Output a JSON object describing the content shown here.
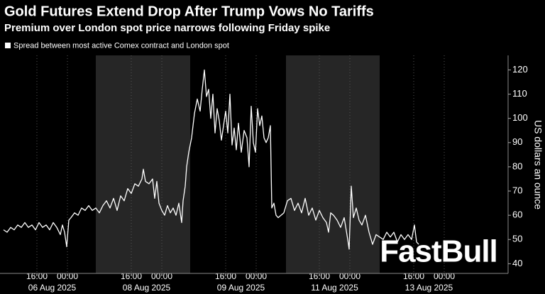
{
  "chart_data": {
    "type": "line",
    "title": "Gold Futures Extend Drop After Trump Vows No Tariffs",
    "subtitle": "Premium over London spot price narrows following Friday spike",
    "y_label": "US dollars an ounce",
    "watermark": "FastBull",
    "x": [
      5,
      10,
      15,
      20,
      25,
      30,
      35,
      40,
      45,
      50,
      55,
      60,
      65,
      70,
      75,
      80,
      85,
      88,
      91,
      94,
      97,
      100,
      105,
      110,
      115,
      120,
      125,
      130,
      135,
      140,
      145,
      150,
      155,
      160,
      165,
      170,
      175,
      180,
      185,
      190,
      195,
      200,
      202,
      205,
      210,
      215,
      218,
      221,
      224,
      228,
      232,
      236,
      240,
      244,
      248,
      252,
      256,
      258,
      261,
      263,
      266,
      270,
      274,
      278,
      282,
      285,
      288,
      291,
      294,
      297,
      300,
      303,
      306,
      309,
      312,
      315,
      318,
      321,
      324,
      327,
      330,
      333,
      336,
      340,
      344,
      348,
      351,
      354,
      357,
      360,
      363,
      366,
      369,
      372,
      375,
      378,
      381,
      383,
      386,
      389,
      392,
      396,
      400,
      405,
      410,
      415,
      420,
      425,
      430,
      435,
      440,
      445,
      450,
      455,
      460,
      463,
      466,
      470,
      475,
      480,
      485,
      490,
      492,
      495,
      498,
      502,
      506,
      510,
      515,
      520,
      525,
      530,
      535,
      540,
      545,
      550,
      555,
      560,
      565,
      570,
      575,
      580,
      584,
      587,
      590
    ],
    "series": [
      {
        "name": "Spread between most active Comex contract and London spot",
        "color": "#ffffff",
        "values": [
          54,
          53,
          55,
          54,
          56,
          55,
          57,
          55,
          56,
          54,
          57,
          55,
          56,
          54,
          57,
          55,
          52,
          56,
          53,
          47,
          58,
          59,
          61,
          60,
          63,
          62,
          64,
          62,
          63,
          61,
          64,
          66,
          63,
          67,
          62,
          68,
          66,
          71,
          69,
          73,
          72,
          75,
          79,
          74,
          73,
          75,
          67,
          74,
          65,
          62,
          60,
          64,
          61,
          63,
          60,
          65,
          57,
          66,
          72,
          80,
          86,
          92,
          102,
          108,
          103,
          112,
          120,
          109,
          112,
          100,
          110,
          94,
          104,
          99,
          91,
          97,
          103,
          94,
          110,
          89,
          96,
          87,
          98,
          86,
          95,
          92,
          80,
          105,
          90,
          86,
          104,
          97,
          101,
          92,
          90,
          92,
          97,
          63,
          65,
          60,
          59,
          60,
          61,
          66,
          67,
          62,
          65,
          61,
          67,
          60,
          63,
          58,
          62,
          59,
          57,
          53,
          61,
          60,
          58,
          55,
          59,
          50,
          46,
          72,
          59,
          63,
          58,
          56,
          60,
          53,
          48,
          52,
          51,
          50,
          53,
          51,
          53,
          49,
          52,
          50,
          52,
          50,
          56,
          49,
          48
        ]
      }
    ],
    "xlim": [
      0,
      716
    ],
    "xticks": [
      {
        "value": 52,
        "label": "16:00"
      },
      {
        "value": 95,
        "label": "00:00"
      },
      {
        "value": 185,
        "label": "16:00"
      },
      {
        "value": 228,
        "label": "00:00"
      },
      {
        "value": 318,
        "label": "16:00"
      },
      {
        "value": 361,
        "label": "00:00"
      },
      {
        "value": 450,
        "label": "16:00"
      },
      {
        "value": 493,
        "label": "00:00"
      },
      {
        "value": 583,
        "label": "16:00"
      },
      {
        "value": 626,
        "label": "00:00"
      }
    ],
    "x_dates": [
      "06 Aug 2025",
      "08 Aug 2025",
      "09 Aug 2025",
      "11 Aug 2025",
      "13 Aug 2025"
    ],
    "shaded_ranges": [
      [
        135,
        268
      ],
      [
        403,
        535
      ]
    ],
    "ylim": [
      36,
      126
    ],
    "yticks": [
      40,
      50,
      60,
      70,
      80,
      90,
      100,
      110,
      120
    ],
    "y_axis_side": "right"
  }
}
